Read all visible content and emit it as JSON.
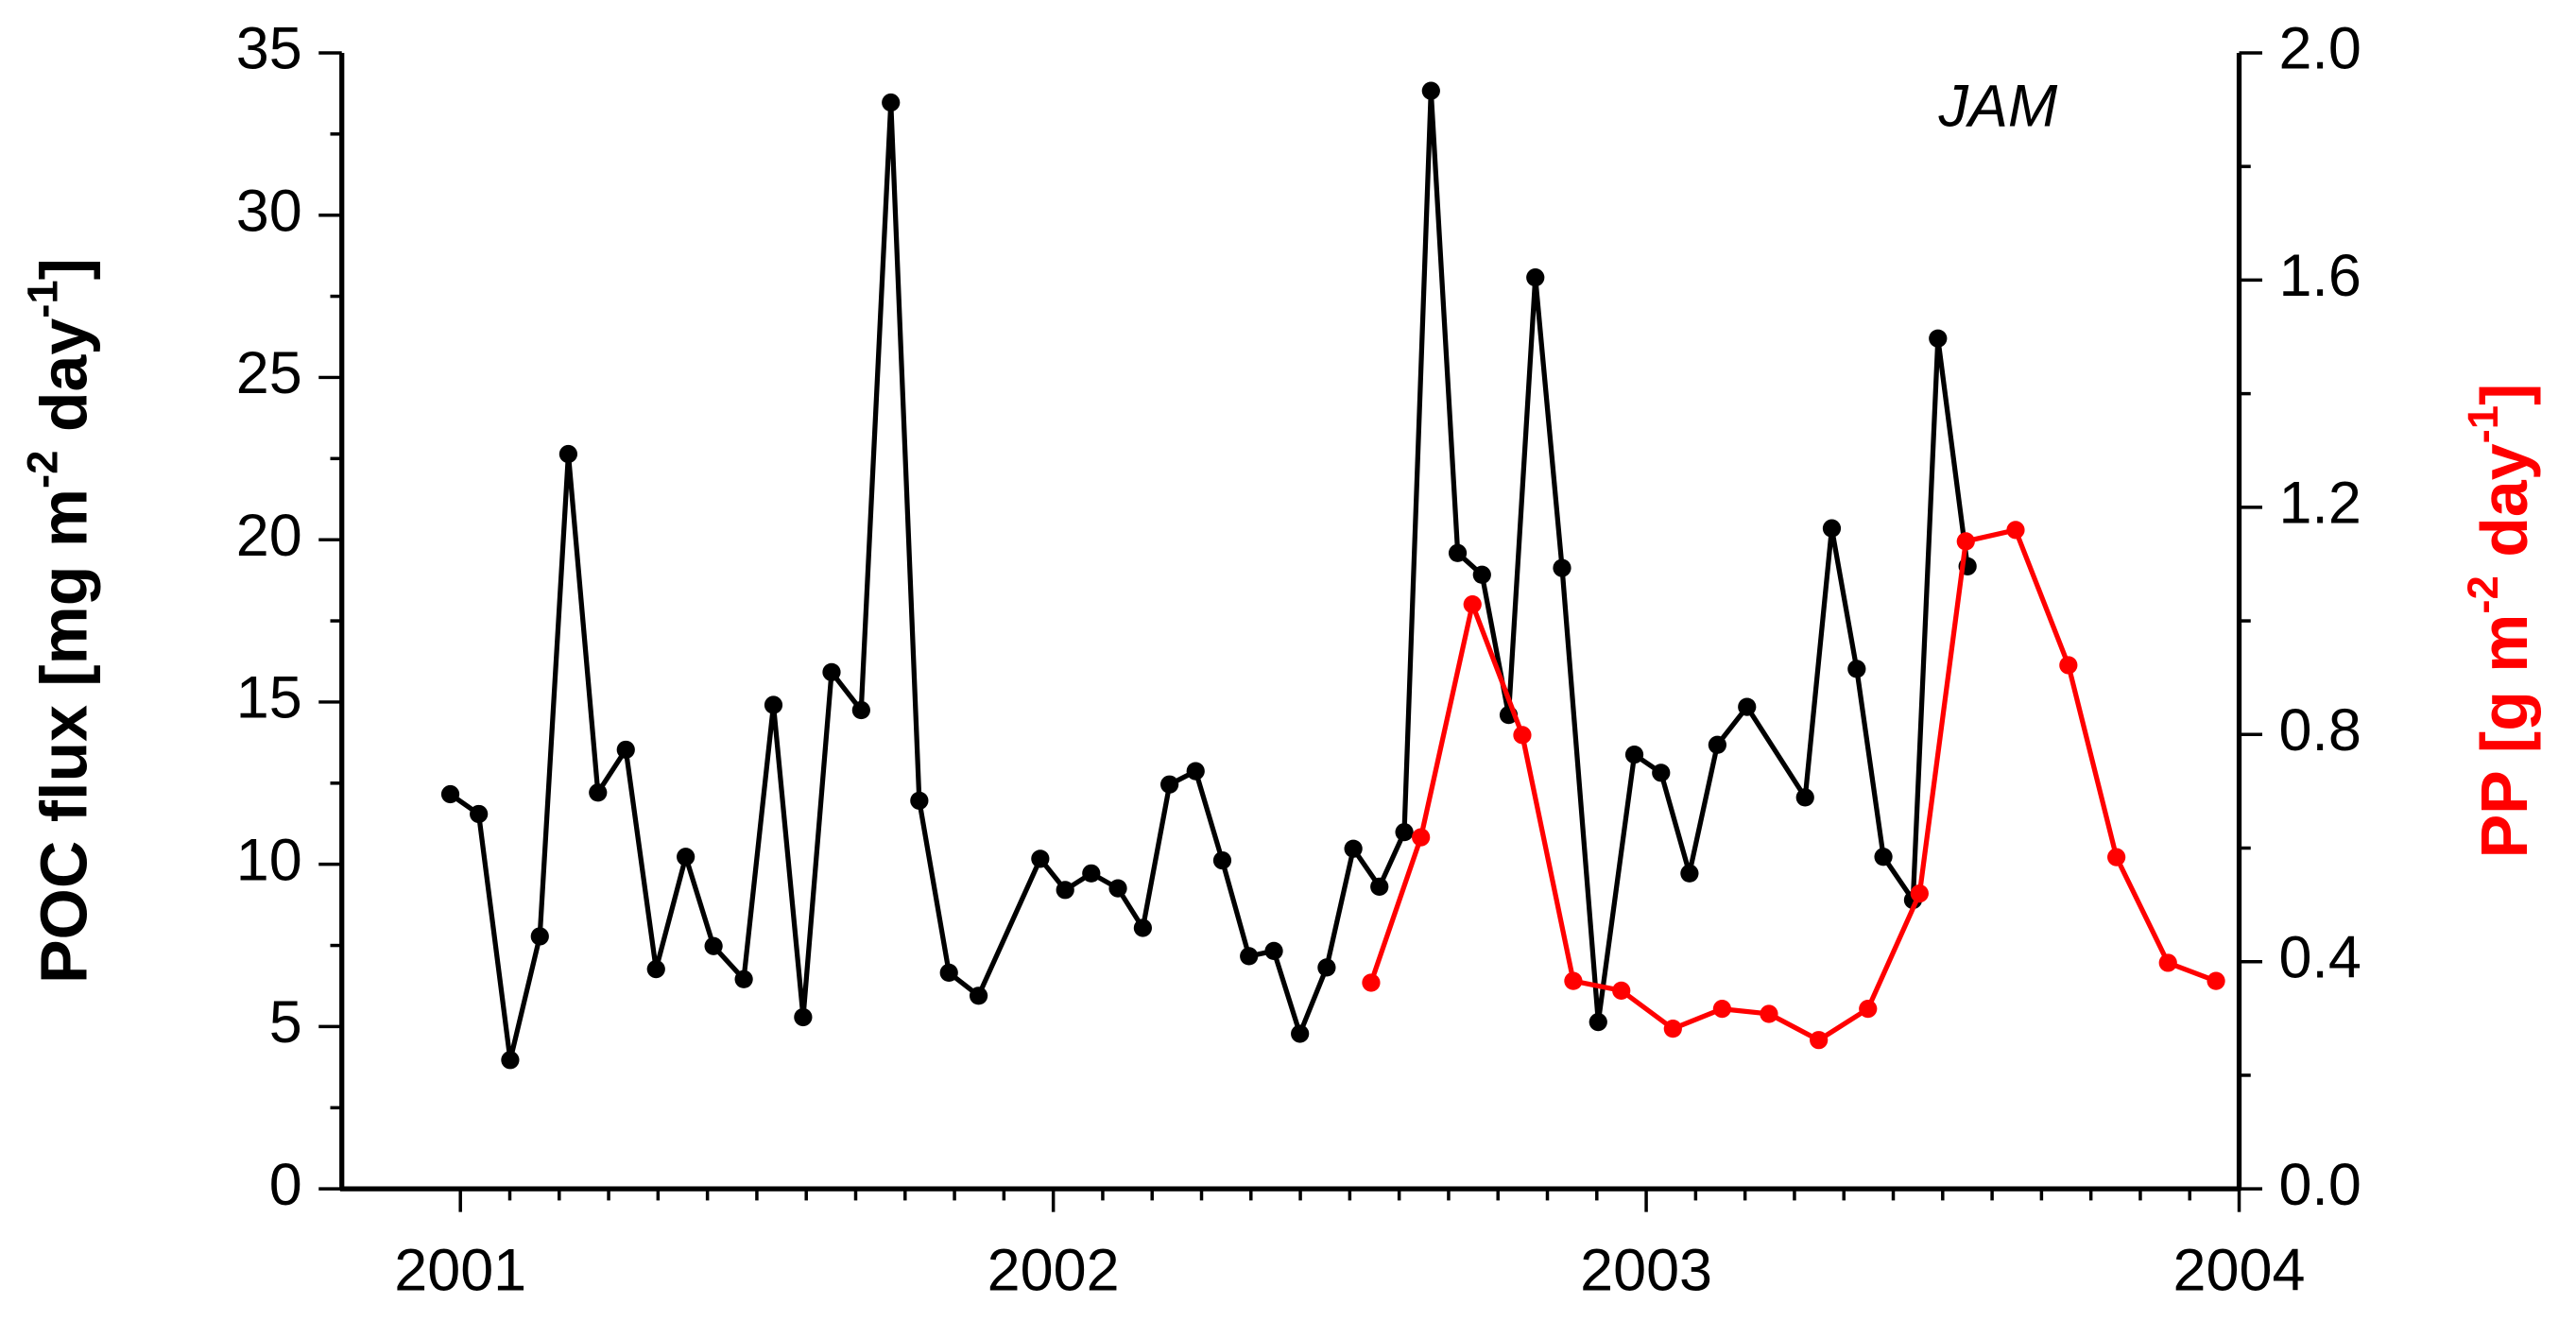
{
  "chart_data": {
    "type": "line",
    "annotation": "JAM",
    "y_label": [
      "POC flux [mg m",
      "-2",
      " day",
      "-1",
      "]"
    ],
    "y2_label": [
      "PP [g m",
      "-2",
      " day",
      "-1",
      "]"
    ],
    "xlim": [
      2000.8,
      2004
    ],
    "xticks": [
      2001,
      2002,
      2003,
      2004
    ],
    "ylim": [
      0,
      35
    ],
    "yticks": [
      0,
      5,
      10,
      15,
      20,
      25,
      30,
      35
    ],
    "y2lim": [
      0,
      2
    ],
    "y2ticks": [
      {
        "value": 0,
        "label": "0.0"
      },
      0.4,
      0.8,
      1.2,
      1.6,
      {
        "value": 2,
        "label": "2.0"
      }
    ],
    "series": [
      {
        "name": "POC flux",
        "color": "#000000",
        "x": [
          2000.983,
          2001.031,
          2001.084,
          2001.134,
          2001.182,
          2001.232,
          2001.279,
          2001.33,
          2001.38,
          2001.427,
          2001.478,
          2001.528,
          2001.578,
          2001.626,
          2001.676,
          2001.726,
          2001.774,
          2001.824,
          2001.874,
          2001.978,
          2002.02,
          2002.064,
          2002.109,
          2002.151,
          2002.196,
          2002.24,
          2002.285,
          2002.33,
          2002.372,
          2002.416,
          2002.461,
          2002.506,
          2002.55,
          2002.592,
          2002.637,
          2002.682,
          2002.723,
          2002.768,
          2002.813,
          2002.858,
          2002.919,
          2002.98,
          2003.025,
          2003.073,
          2003.12,
          2003.17,
          2003.268,
          2003.313,
          2003.355,
          2003.4,
          2003.45,
          2003.492,
          2003.542
        ],
        "values": [
          12.16,
          11.55,
          3.97,
          7.78,
          22.64,
          12.21,
          13.53,
          6.77,
          10.23,
          7.48,
          6.46,
          14.91,
          5.29,
          15.92,
          14.75,
          33.47,
          11.96,
          6.66,
          5.95,
          10.17,
          9.21,
          9.72,
          9.26,
          8.04,
          12.46,
          12.87,
          10.12,
          7.17,
          7.33,
          4.78,
          6.82,
          10.48,
          9.31,
          10.99,
          33.83,
          19.59,
          18.92,
          14.6,
          28.08,
          19.13,
          5.14,
          13.38,
          12.82,
          9.72,
          13.68,
          14.85,
          12.06,
          20.35,
          16.02,
          10.23,
          8.9,
          26.2,
          19.18
        ]
      },
      {
        "name": "PP",
        "color": "#ff0000",
        "axis": "y2",
        "x": [
          2002.536,
          2002.62,
          2002.707,
          2002.791,
          2002.877,
          2002.958,
          2003.045,
          2003.128,
          2003.207,
          2003.291,
          2003.374,
          2003.461,
          2003.539,
          2003.623,
          2003.712,
          2003.793,
          2003.88,
          2003.961
        ],
        "values": [
          0.363,
          0.619,
          1.029,
          0.799,
          0.366,
          0.349,
          0.282,
          0.317,
          0.308,
          0.262,
          0.317,
          0.52,
          1.14,
          1.16,
          0.922,
          0.584,
          0.398,
          0.366
        ]
      }
    ]
  }
}
